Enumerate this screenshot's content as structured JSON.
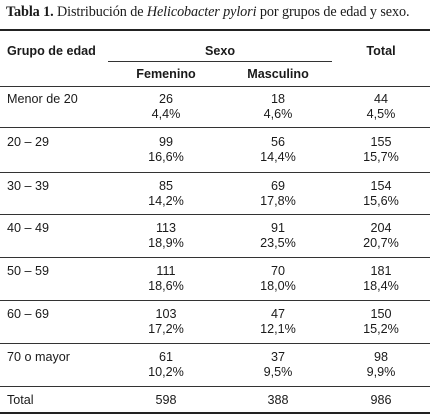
{
  "caption": {
    "label": "Tabla 1.",
    "text_before": " Distribución de ",
    "italic": "Helicobacter pylori",
    "text_after": " por grupos de edad y sexo."
  },
  "table": {
    "headers": {
      "group": "Grupo de edad",
      "sexo": "Sexo",
      "total": "Total",
      "femenino": "Femenino",
      "masculino": "Masculino"
    },
    "rows": [
      {
        "group": "Menor de 20",
        "f_n": "26",
        "f_p": "4,4%",
        "m_n": "18",
        "m_p": "4,6%",
        "t_n": "44",
        "t_p": "4,5%"
      },
      {
        "group": "20 – 29",
        "f_n": "99",
        "f_p": "16,6%",
        "m_n": "56",
        "m_p": "14,4%",
        "t_n": "155",
        "t_p": "15,7%"
      },
      {
        "group": "30 – 39",
        "f_n": "85",
        "f_p": "14,2%",
        "m_n": "69",
        "m_p": "17,8%",
        "t_n": "154",
        "t_p": "15,6%"
      },
      {
        "group": "40 – 49",
        "f_n": "113",
        "f_p": "18,9%",
        "m_n": "91",
        "m_p": "23,5%",
        "t_n": "204",
        "t_p": "20,7%"
      },
      {
        "group": "50 – 59",
        "f_n": "111",
        "f_p": "18,6%",
        "m_n": "70",
        "m_p": "18,0%",
        "t_n": "181",
        "t_p": "18,4%"
      },
      {
        "group": "60 – 69",
        "f_n": "103",
        "f_p": "17,2%",
        "m_n": "47",
        "m_p": "12,1%",
        "t_n": "150",
        "t_p": "15,2%"
      },
      {
        "group": "70 o mayor",
        "f_n": "61",
        "f_p": "10,2%",
        "m_n": "37",
        "m_p": "9,5%",
        "t_n": "98",
        "t_p": "9,9%"
      }
    ],
    "total": {
      "group": "Total",
      "f": "598",
      "m": "388",
      "t": "986"
    }
  }
}
